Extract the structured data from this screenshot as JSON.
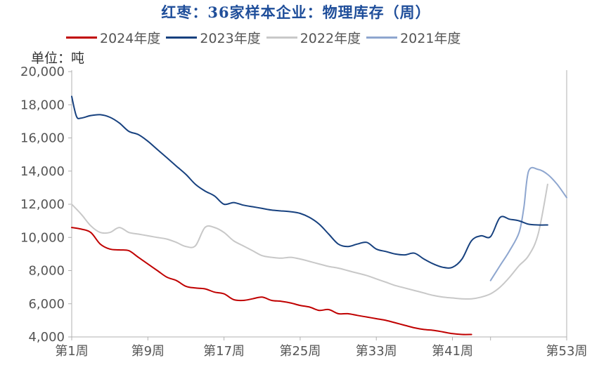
{
  "title": "红枣：36家样本企业：物理库存（周）",
  "unit_label": "单位：吨",
  "chart_data": {
    "type": "line",
    "title": "红枣：36家样本企业：物理库存（周）",
    "ylabel": "单位：吨",
    "xlabel": "",
    "ylim": [
      4000,
      20000
    ],
    "xlim": [
      1,
      53
    ],
    "yticks": [
      4000,
      6000,
      8000,
      10000,
      12000,
      14000,
      16000,
      18000,
      20000
    ],
    "ytick_labels": [
      "4,000",
      "6,000",
      "8,000",
      "10,000",
      "12,000",
      "14,000",
      "16,000",
      "18,000",
      "20,000"
    ],
    "xticks": [
      1,
      9,
      17,
      25,
      33,
      41,
      53
    ],
    "xtick_labels": [
      "第1周",
      "第9周",
      "第17周",
      "第25周",
      "第33周",
      "第41周",
      "第53周"
    ],
    "grid": false,
    "legend_position": "top",
    "series": [
      {
        "name": "2024年度",
        "color": "#C00000",
        "x": [
          1,
          2,
          3,
          4,
          5,
          6,
          7,
          8,
          9,
          10,
          11,
          12,
          13,
          14,
          15,
          16,
          17,
          18,
          19,
          20,
          21,
          22,
          23,
          24,
          25,
          26,
          27,
          28,
          29,
          30,
          31,
          32,
          33,
          34,
          35,
          36,
          37,
          38,
          39,
          40,
          41,
          42,
          43
        ],
        "y": [
          10600,
          10500,
          10300,
          9600,
          9300,
          9250,
          9200,
          8800,
          8400,
          8000,
          7600,
          7400,
          7050,
          6950,
          6900,
          6700,
          6600,
          6250,
          6200,
          6300,
          6400,
          6200,
          6150,
          6050,
          5900,
          5800,
          5600,
          5650,
          5400,
          5400,
          5300,
          5200,
          5100,
          5000,
          4850,
          4700,
          4550,
          4450,
          4400,
          4300,
          4200,
          4150,
          4150
        ]
      },
      {
        "name": "2023年度",
        "color": "#17417F",
        "x": [
          1,
          1.5,
          2,
          3,
          4,
          5,
          6,
          7,
          8,
          9,
          10,
          11,
          12,
          13,
          14,
          15,
          16,
          17,
          18,
          19,
          20,
          21,
          22,
          23,
          24,
          25,
          26,
          27,
          28,
          29,
          30,
          31,
          32,
          33,
          34,
          35,
          36,
          37,
          38,
          39,
          40,
          41,
          42,
          43,
          44,
          45,
          46,
          47,
          48,
          49,
          50,
          51
        ],
        "y": [
          18500,
          17300,
          17200,
          17350,
          17400,
          17250,
          16900,
          16400,
          16200,
          15800,
          15300,
          14800,
          14300,
          13800,
          13200,
          12800,
          12500,
          12000,
          12100,
          11950,
          11850,
          11750,
          11650,
          11600,
          11550,
          11450,
          11200,
          10800,
          10200,
          9600,
          9450,
          9600,
          9700,
          9300,
          9150,
          9000,
          8950,
          9050,
          8700,
          8400,
          8200,
          8200,
          8700,
          9800,
          10100,
          10050,
          11200,
          11100,
          11000,
          10800,
          10750,
          10750
        ]
      },
      {
        "name": "2022年度",
        "color": "#C8C8C8",
        "x": [
          1,
          2,
          3,
          4,
          5,
          6,
          7,
          8,
          9,
          10,
          11,
          12,
          13,
          14,
          15,
          16,
          17,
          18,
          19,
          20,
          21,
          22,
          23,
          24,
          25,
          26,
          27,
          28,
          29,
          30,
          31,
          32,
          33,
          34,
          35,
          36,
          37,
          38,
          39,
          40,
          41,
          42,
          43,
          44,
          45,
          46,
          47,
          48,
          49,
          50,
          51
        ],
        "y": [
          12000,
          11400,
          10700,
          10300,
          10300,
          10600,
          10300,
          10200,
          10100,
          10000,
          9900,
          9700,
          9450,
          9500,
          10600,
          10600,
          10300,
          9800,
          9500,
          9200,
          8900,
          8800,
          8750,
          8800,
          8700,
          8550,
          8400,
          8250,
          8150,
          8000,
          7850,
          7700,
          7500,
          7300,
          7100,
          6950,
          6800,
          6650,
          6500,
          6400,
          6350,
          6300,
          6300,
          6400,
          6600,
          7000,
          7600,
          8300,
          8900,
          10200,
          13200
        ]
      },
      {
        "name": "2021年度",
        "color": "#8EA6CF",
        "x": [
          45,
          46,
          47,
          48,
          48.5,
          49,
          50,
          51,
          52,
          53
        ],
        "y": [
          7400,
          8300,
          9200,
          10300,
          11800,
          14000,
          14100,
          13800,
          13200,
          12400
        ]
      }
    ]
  }
}
